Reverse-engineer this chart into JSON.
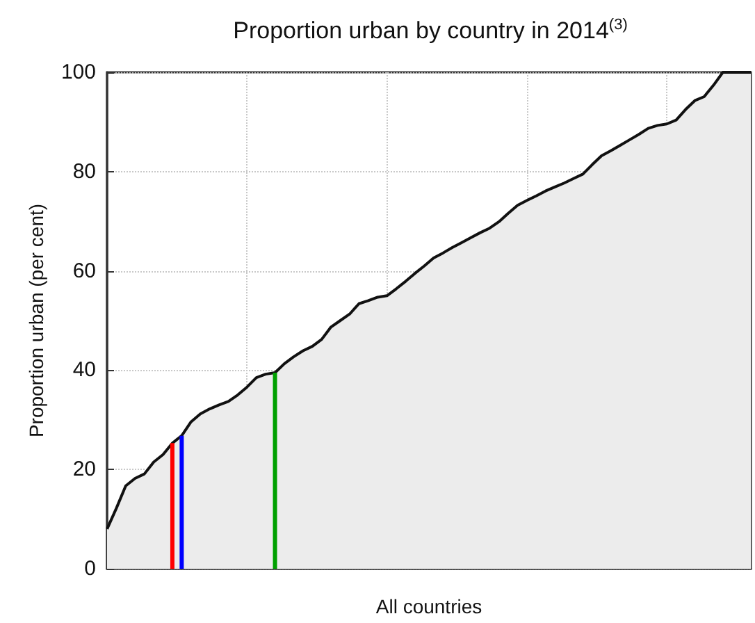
{
  "chart_data": {
    "type": "area",
    "title": "Proportion urban by country in 2014$^{(3)}$",
    "xlabel": "All countries",
    "ylabel": "Proportion urban (per cent)",
    "categories": [
      null,
      null,
      null,
      null,
      null,
      null,
      null,
      null,
      null,
      null,
      null,
      null,
      null,
      null,
      null,
      null,
      null,
      null,
      null,
      null,
      null,
      null,
      null,
      null,
      null,
      null,
      null,
      null,
      null,
      null,
      null,
      null,
      null,
      null,
      null,
      null,
      null,
      null,
      null,
      null,
      null,
      null,
      null,
      null,
      null,
      null,
      null,
      null,
      null,
      null,
      null,
      null,
      null,
      null,
      null,
      null,
      null,
      null,
      null,
      null,
      null,
      null,
      null,
      null,
      null,
      null,
      null,
      null,
      null,
      null
    ],
    "series": [
      {
        "color": "#111111",
        "values": [
          8,
          12.2,
          16.7,
          18.2,
          19.1,
          21.5,
          23.0,
          25.3,
          26.8,
          29.6,
          31.2,
          32.2,
          33.0,
          33.7,
          35.0,
          36.6,
          38.5,
          39.2,
          39.5,
          41.3,
          42.7,
          43.9,
          44.8,
          46.2,
          48.7,
          50.0,
          51.3,
          53.4,
          54.0,
          54.7,
          55.0,
          56.4,
          57.9,
          59.5,
          61.0,
          62.6,
          63.6,
          64.7,
          65.7,
          66.7,
          67.7,
          68.6,
          69.9,
          71.6,
          73.2,
          74.2,
          75.1,
          76.1,
          76.9,
          77.7,
          78.6,
          79.5,
          81.4,
          83.2,
          84.2,
          85.3,
          86.4,
          87.5,
          88.7,
          89.3,
          89.6,
          90.4,
          92.5,
          94.3,
          95.1,
          97.4,
          100,
          100,
          100,
          100
        ]
      },
      {
        "type": "bar",
        "values": [
          null,
          null,
          null,
          null,
          null,
          null,
          null,
          25.3,
          26.8,
          null,
          null,
          null,
          null,
          null,
          null,
          null,
          null,
          null,
          39.5,
          null,
          null,
          null,
          null,
          null,
          null,
          null,
          null,
          null,
          null,
          null,
          null,
          null,
          null,
          null,
          null,
          null,
          null,
          null,
          null,
          null,
          null,
          null,
          null,
          null,
          null,
          null,
          null,
          null,
          null,
          null,
          null,
          null,
          null,
          null,
          null,
          null,
          null,
          null,
          null,
          null,
          null,
          null,
          null,
          null,
          null,
          null,
          null,
          null,
          null,
          null
        ],
        "colors": [
          null,
          null,
          null,
          null,
          null,
          null,
          null,
          "#ff0000",
          "#0000ff",
          null,
          null,
          null,
          null,
          null,
          null,
          null,
          null,
          null,
          "#00a000",
          null,
          null,
          null,
          null,
          null,
          null,
          null,
          null,
          null,
          null,
          null,
          null,
          null,
          null,
          null,
          null,
          null,
          null,
          null,
          null,
          null,
          null,
          null,
          null,
          null,
          null,
          null,
          null,
          null,
          null,
          null,
          null,
          null,
          null,
          null,
          null,
          null,
          null,
          null,
          null,
          null,
          null,
          null,
          null,
          null,
          null,
          null,
          null,
          null,
          null,
          null
        ]
      }
    ],
    "ylim": [
      0,
      100
    ],
    "yticks": [
      0,
      20,
      40,
      60,
      80,
      100
    ],
    "grid": true,
    "marker": "none",
    "line_style": "solid"
  }
}
